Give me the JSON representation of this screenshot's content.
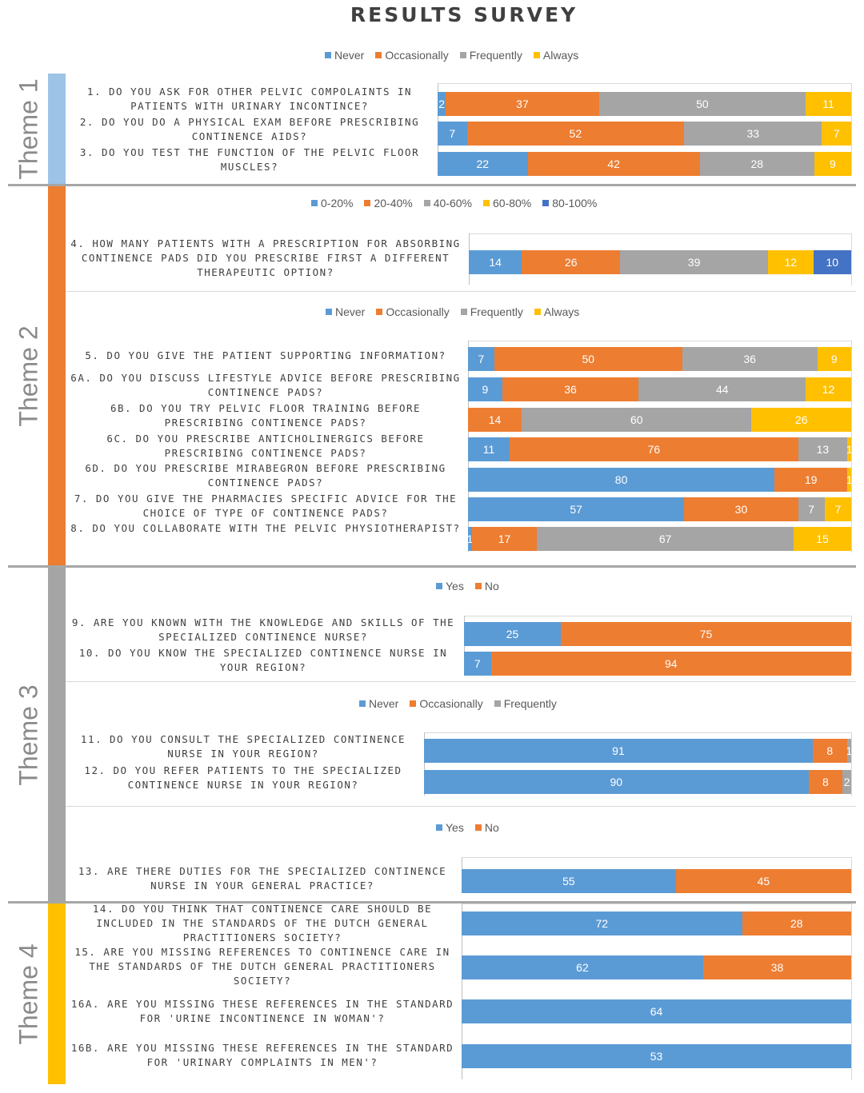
{
  "title": "RESULTS SURVEY",
  "colors": {
    "never": "#5b9bd5",
    "occasionally": "#ed7d31",
    "frequently": "#a5a5a5",
    "always": "#ffc000",
    "yes": "#5b9bd5",
    "no": "#ed7d31",
    "p0_20": "#5b9bd5",
    "p20_40": "#ed7d31",
    "p40_60": "#a5a5a5",
    "p60_80": "#ffc000",
    "p80_100": "#4472c4"
  },
  "themes": [
    {
      "label": "Theme 1",
      "color": "#9dc3e6"
    },
    {
      "label": "Theme 2",
      "color": "#ed7d31"
    },
    {
      "label": "Theme 3",
      "color": "#a5a5a5"
    },
    {
      "label": "Theme 4",
      "color": "#ffc000"
    }
  ],
  "chart_data": [
    {
      "type": "bar",
      "orientation": "horizontal-stacked",
      "title": "RESULTS SURVEY",
      "legend": [
        "Never",
        "Occasionally",
        "Frequently",
        "Always"
      ],
      "series_colors": [
        "#5b9bd5",
        "#ed7d31",
        "#a5a5a5",
        "#ffc000"
      ],
      "categories": [
        "1. Do you ask for other pelvic compolaints in patients with urinary incontince?",
        "2. Do you do a physical exam before prescribing continence aids?",
        "3. Do you test the function of the pelvic floor muscles?"
      ],
      "rows": [
        [
          2,
          37,
          50,
          11
        ],
        [
          7,
          52,
          33,
          7
        ],
        [
          22,
          42,
          28,
          9
        ]
      ]
    },
    {
      "type": "bar",
      "orientation": "horizontal-stacked",
      "legend": [
        "0-20%",
        "20-40%",
        "40-60%",
        "60-80%",
        "80-100%"
      ],
      "series_colors": [
        "#5b9bd5",
        "#ed7d31",
        "#a5a5a5",
        "#ffc000",
        "#4472c4"
      ],
      "categories": [
        "4. How many patients with a prescription for absorbing continence pads did you prescribe first a different therapeutic option?"
      ],
      "rows": [
        [
          14,
          26,
          39,
          12,
          10
        ]
      ]
    },
    {
      "type": "bar",
      "orientation": "horizontal-stacked",
      "legend": [
        "Never",
        "Occasionally",
        "Frequently",
        "Always"
      ],
      "series_colors": [
        "#5b9bd5",
        "#ed7d31",
        "#a5a5a5",
        "#ffc000"
      ],
      "categories": [
        "5. Do you give the patient supporting information?",
        "6A. Do you discuss lifestyle advice before prescribing continence pads?",
        "6B. Do you try pelvic floor training before prescribing continence pads?",
        "6C. Do you prescribe anticholinergics before prescribing continence pads?",
        "6D. Do you prescribe mirabegron before prescribing continence pads?",
        "7. Do you give the pharmacies specific advice for the choice of type of continence pads?",
        "8. Do you collaborate with the pelvic physiotherapist?"
      ],
      "rows": [
        [
          7,
          50,
          36,
          9
        ],
        [
          9,
          36,
          44,
          12
        ],
        [
          0,
          14,
          60,
          26
        ],
        [
          11,
          76,
          13,
          1
        ],
        [
          80,
          19,
          0,
          1
        ],
        [
          57,
          30,
          7,
          7
        ],
        [
          1,
          17,
          67,
          15
        ]
      ]
    },
    {
      "type": "bar",
      "orientation": "horizontal-stacked",
      "legend": [
        "Yes",
        "No"
      ],
      "series_colors": [
        "#5b9bd5",
        "#ed7d31"
      ],
      "categories": [
        "9. Are you known with the knowledge and skills of the specialized continence nurse?",
        "10. Do you know the specialized continence nurse in your region?"
      ],
      "rows": [
        [
          25,
          75
        ],
        [
          7,
          94
        ]
      ]
    },
    {
      "type": "bar",
      "orientation": "horizontal-stacked",
      "legend": [
        "Never",
        "Occasionally",
        "Frequently"
      ],
      "series_colors": [
        "#5b9bd5",
        "#ed7d31",
        "#a5a5a5"
      ],
      "categories": [
        "11. Do you consult the specialized continence nurse in your region?",
        "12. Do you refer patients to the specialized continence nurse in your region?"
      ],
      "rows": [
        [
          91,
          8,
          1
        ],
        [
          90,
          8,
          2
        ]
      ]
    },
    {
      "type": "bar",
      "orientation": "horizontal-stacked",
      "legend": [
        "Yes",
        "No"
      ],
      "series_colors": [
        "#5b9bd5",
        "#ed7d31"
      ],
      "categories": [
        "13. Are there duties for the specialized continence nurse in your general practice?"
      ],
      "rows": [
        [
          55,
          45
        ]
      ]
    },
    {
      "type": "bar",
      "orientation": "horizontal-stacked",
      "series_colors": [
        "#5b9bd5",
        "#ed7d31"
      ],
      "categories": [
        "14. Do you think that continence care should be included in the standards of the Dutch General Practitioners Society?",
        "15. Are you missing references to continence care in the standards of the Dutch General Practitioners Society?",
        "16A. Are you missing these references in the standard for 'urine incontinence in woman'?",
        "16B. Are you missing these references in the standard for 'urinary complaints in men'?"
      ],
      "rows": [
        [
          72,
          28
        ],
        [
          62,
          38
        ],
        [
          64
        ],
        [
          53
        ]
      ]
    }
  ]
}
